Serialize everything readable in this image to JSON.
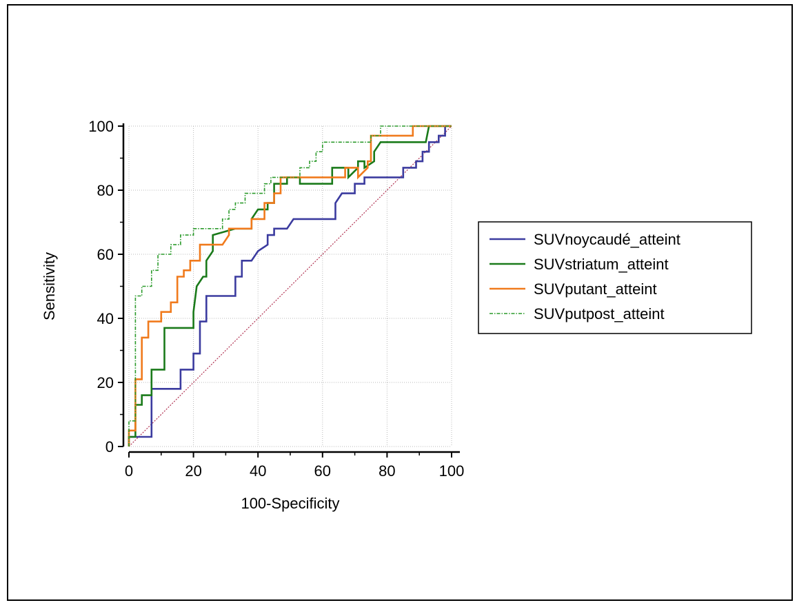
{
  "chart_data": {
    "type": "line",
    "title": "",
    "xlabel": "100-Specificity",
    "ylabel": "Sensitivity",
    "xlim": [
      0,
      100
    ],
    "ylim": [
      0,
      100
    ],
    "xticks": [
      "0",
      "20",
      "40",
      "60",
      "80",
      "100"
    ],
    "yticks": [
      "0",
      "20",
      "40",
      "60",
      "80",
      "100"
    ],
    "grid": true,
    "legend_position": "right",
    "reference_line": {
      "points": [
        [
          0,
          0
        ],
        [
          100,
          100
        ]
      ],
      "color": "#b03050",
      "style": "dotted"
    },
    "series": [
      {
        "name": "SUVnoycaudé_atteint",
        "color": "#3b3b9f",
        "style": "solid",
        "points": [
          [
            0,
            0
          ],
          [
            0,
            3
          ],
          [
            7,
            3
          ],
          [
            7,
            18
          ],
          [
            16,
            18
          ],
          [
            16,
            24
          ],
          [
            20,
            24
          ],
          [
            20,
            29
          ],
          [
            22,
            29
          ],
          [
            22,
            39
          ],
          [
            24,
            39
          ],
          [
            24,
            47
          ],
          [
            33,
            47
          ],
          [
            33,
            53
          ],
          [
            35,
            53
          ],
          [
            35,
            58
          ],
          [
            38,
            58
          ],
          [
            40,
            61
          ],
          [
            43,
            63
          ],
          [
            43,
            66
          ],
          [
            45,
            66
          ],
          [
            45,
            68
          ],
          [
            49,
            68
          ],
          [
            51,
            71
          ],
          [
            64,
            71
          ],
          [
            64,
            76
          ],
          [
            66,
            79
          ],
          [
            70,
            79
          ],
          [
            70,
            82
          ],
          [
            73,
            82
          ],
          [
            73,
            84
          ],
          [
            85,
            84
          ],
          [
            85,
            87
          ],
          [
            89,
            87
          ],
          [
            89,
            89
          ],
          [
            91,
            89
          ],
          [
            91,
            92
          ],
          [
            93,
            92
          ],
          [
            93,
            95
          ],
          [
            96,
            95
          ],
          [
            96,
            97
          ],
          [
            98,
            97
          ],
          [
            98,
            100
          ],
          [
            100,
            100
          ]
        ]
      },
      {
        "name": "SUVstriatum_atteint",
        "color": "#1a7a1a",
        "style": "solid",
        "points": [
          [
            0,
            0
          ],
          [
            0,
            3
          ],
          [
            2,
            3
          ],
          [
            2,
            13
          ],
          [
            4,
            13
          ],
          [
            4,
            16
          ],
          [
            7,
            16
          ],
          [
            7,
            24
          ],
          [
            11,
            24
          ],
          [
            11,
            37
          ],
          [
            20,
            37
          ],
          [
            20,
            42
          ],
          [
            21,
            50
          ],
          [
            23,
            53
          ],
          [
            24,
            53
          ],
          [
            24,
            58
          ],
          [
            26,
            61
          ],
          [
            26,
            66
          ],
          [
            33,
            68
          ],
          [
            38,
            68
          ],
          [
            38,
            71
          ],
          [
            40,
            74
          ],
          [
            43,
            74
          ],
          [
            43,
            76
          ],
          [
            45,
            76
          ],
          [
            45,
            82
          ],
          [
            49,
            82
          ],
          [
            49,
            84
          ],
          [
            53,
            84
          ],
          [
            53,
            82
          ],
          [
            63,
            82
          ],
          [
            63,
            87
          ],
          [
            68,
            87
          ],
          [
            68,
            84
          ],
          [
            71,
            87
          ],
          [
            71,
            89
          ],
          [
            73,
            89
          ],
          [
            73,
            87
          ],
          [
            76,
            89
          ],
          [
            76,
            92
          ],
          [
            78,
            95
          ],
          [
            92,
            95
          ],
          [
            93,
            100
          ],
          [
            100,
            100
          ]
        ]
      },
      {
        "name": "SUVputant_atteint",
        "color": "#f07a1c",
        "style": "solid",
        "points": [
          [
            0,
            0
          ],
          [
            0,
            5
          ],
          [
            2,
            5
          ],
          [
            2,
            21
          ],
          [
            4,
            21
          ],
          [
            4,
            34
          ],
          [
            6,
            34
          ],
          [
            6,
            39
          ],
          [
            10,
            39
          ],
          [
            10,
            42
          ],
          [
            13,
            42
          ],
          [
            13,
            45
          ],
          [
            15,
            45
          ],
          [
            15,
            53
          ],
          [
            17,
            53
          ],
          [
            17,
            55
          ],
          [
            19,
            55
          ],
          [
            19,
            58
          ],
          [
            22,
            58
          ],
          [
            22,
            63
          ],
          [
            29,
            63
          ],
          [
            31,
            66
          ],
          [
            31,
            68
          ],
          [
            38,
            68
          ],
          [
            38,
            71
          ],
          [
            42,
            71
          ],
          [
            42,
            76
          ],
          [
            45,
            76
          ],
          [
            45,
            79
          ],
          [
            47,
            79
          ],
          [
            47,
            84
          ],
          [
            67,
            84
          ],
          [
            67,
            87
          ],
          [
            71,
            87
          ],
          [
            71,
            84
          ],
          [
            74,
            87
          ],
          [
            74,
            89
          ],
          [
            75,
            89
          ],
          [
            75,
            97
          ],
          [
            88,
            97
          ],
          [
            88,
            100
          ],
          [
            100,
            100
          ]
        ]
      },
      {
        "name": "SUVputpost_atteint",
        "color": "#2a9a2a",
        "style": "dashdot",
        "points": [
          [
            0,
            0
          ],
          [
            0,
            8
          ],
          [
            2,
            8
          ],
          [
            2,
            47
          ],
          [
            4,
            47
          ],
          [
            4,
            50
          ],
          [
            7,
            50
          ],
          [
            7,
            55
          ],
          [
            9,
            55
          ],
          [
            9,
            60
          ],
          [
            13,
            60
          ],
          [
            13,
            63
          ],
          [
            16,
            63
          ],
          [
            16,
            66
          ],
          [
            20,
            66
          ],
          [
            20,
            68
          ],
          [
            29,
            68
          ],
          [
            29,
            71
          ],
          [
            31,
            71
          ],
          [
            31,
            74
          ],
          [
            33,
            74
          ],
          [
            33,
            76
          ],
          [
            36,
            76
          ],
          [
            36,
            79
          ],
          [
            42,
            79
          ],
          [
            42,
            82
          ],
          [
            44,
            82
          ],
          [
            44,
            84
          ],
          [
            53,
            84
          ],
          [
            53,
            87
          ],
          [
            56,
            87
          ],
          [
            56,
            89
          ],
          [
            58,
            89
          ],
          [
            58,
            92
          ],
          [
            60,
            92
          ],
          [
            60,
            95
          ],
          [
            75,
            95
          ],
          [
            75,
            97
          ],
          [
            78,
            97
          ],
          [
            78,
            100
          ],
          [
            100,
            100
          ]
        ]
      }
    ]
  }
}
